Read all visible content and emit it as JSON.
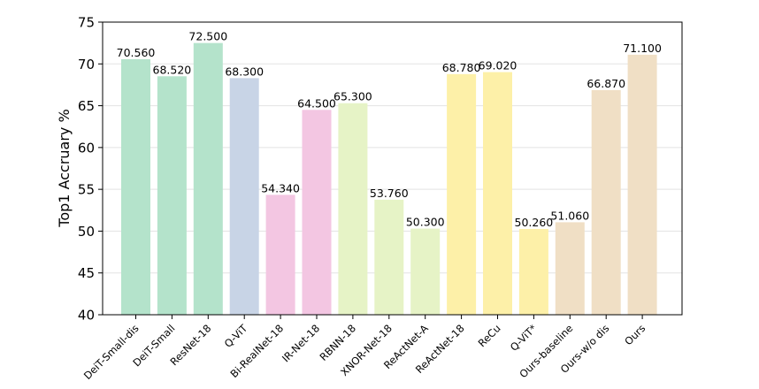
{
  "chart_data": {
    "type": "bar",
    "title": "",
    "xlabel": "",
    "ylabel": "Top1 Accruary %",
    "ylim": [
      40,
      75
    ],
    "yticks": [
      40,
      45,
      50,
      55,
      60,
      65,
      70,
      75
    ],
    "grid": "horizontal",
    "categories": [
      "DeiT-Small-dis",
      "DeiT-Small",
      "ResNet-18",
      "Q-ViT",
      "Bi-RealNet-18",
      "IR-Net-18",
      "RBNN-18",
      "XNOR-Net-18",
      "ReActNet-A",
      "ReActNet-18",
      "ReCu",
      "Q-ViT*",
      "Ours-baseline",
      "Ours-w/o dis",
      "Ours"
    ],
    "values": [
      70.56,
      68.52,
      72.5,
      68.3,
      54.34,
      64.5,
      65.3,
      53.76,
      50.3,
      68.78,
      69.02,
      50.26,
      51.06,
      66.87,
      71.1
    ],
    "value_labels": [
      "70.560",
      "68.520",
      "72.500",
      "68.300",
      "54.340",
      "64.500",
      "65.300",
      "53.760",
      "50.300",
      "68.780",
      "69.020",
      "50.260",
      "51.060",
      "66.870",
      "71.100"
    ],
    "colors": [
      "#b4e3cb",
      "#b4e3cb",
      "#b4e3cb",
      "#c8d4e6",
      "#f3c6e2",
      "#f3c6e2",
      "#e6f3c6",
      "#e6f3c6",
      "#e6f3c6",
      "#fdf0a8",
      "#fdf0a8",
      "#fdf0a8",
      "#f0dfc5",
      "#f0dfc5",
      "#f0dfc5"
    ]
  }
}
